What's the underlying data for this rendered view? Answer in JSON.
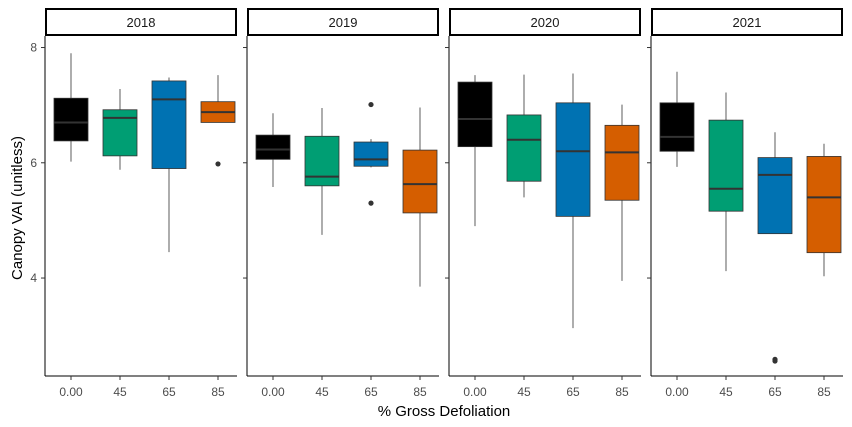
{
  "chart_data": {
    "type": "boxplot",
    "facet_by": "year",
    "xlabel": "% Gross Defoliation",
    "ylabel": "Canopy VAI (unitless)",
    "categories": [
      "0.00",
      "45",
      "65",
      "85"
    ],
    "ylim": [
      2.3,
      8.2
    ],
    "yticks": [
      4,
      6,
      8
    ],
    "grid": false,
    "legend": "none",
    "colors": {
      "0.00": "#000000",
      "45": "#009E73",
      "65": "#0072B2",
      "85": "#D55E00"
    },
    "median_color": "#333333",
    "facets": [
      {
        "label": "2018",
        "boxes": [
          {
            "category": "0.00",
            "whisker_low": 6.02,
            "q1": 6.38,
            "median": 6.7,
            "q3": 7.12,
            "whisker_high": 7.9,
            "outliers": []
          },
          {
            "category": "45",
            "whisker_low": 5.88,
            "q1": 6.12,
            "median": 6.78,
            "q3": 6.92,
            "whisker_high": 7.28,
            "outliers": []
          },
          {
            "category": "65",
            "whisker_low": 4.45,
            "q1": 5.9,
            "median": 7.1,
            "q3": 7.42,
            "whisker_high": 7.48,
            "outliers": []
          },
          {
            "category": "85",
            "whisker_low": 6.7,
            "q1": 6.7,
            "median": 6.88,
            "q3": 7.06,
            "whisker_high": 7.52,
            "outliers": [
              5.98
            ]
          }
        ]
      },
      {
        "label": "2019",
        "boxes": [
          {
            "category": "0.00",
            "whisker_low": 5.58,
            "q1": 6.06,
            "median": 6.23,
            "q3": 6.48,
            "whisker_high": 6.86,
            "outliers": []
          },
          {
            "category": "45",
            "whisker_low": 4.75,
            "q1": 5.6,
            "median": 5.76,
            "q3": 6.46,
            "whisker_high": 6.95,
            "outliers": []
          },
          {
            "category": "65",
            "whisker_low": 5.92,
            "q1": 5.94,
            "median": 6.06,
            "q3": 6.36,
            "whisker_high": 6.41,
            "outliers": [
              7.01,
              5.3
            ]
          },
          {
            "category": "85",
            "whisker_low": 3.85,
            "q1": 5.13,
            "median": 5.63,
            "q3": 6.22,
            "whisker_high": 6.96,
            "outliers": []
          }
        ]
      },
      {
        "label": "2020",
        "boxes": [
          {
            "category": "0.00",
            "whisker_low": 4.9,
            "q1": 6.28,
            "median": 6.76,
            "q3": 7.4,
            "whisker_high": 7.52,
            "outliers": []
          },
          {
            "category": "45",
            "whisker_low": 5.4,
            "q1": 5.68,
            "median": 6.4,
            "q3": 6.83,
            "whisker_high": 7.53,
            "outliers": []
          },
          {
            "category": "65",
            "whisker_low": 3.13,
            "q1": 5.07,
            "median": 6.2,
            "q3": 7.04,
            "whisker_high": 7.55,
            "outliers": []
          },
          {
            "category": "85",
            "whisker_low": 3.95,
            "q1": 5.35,
            "median": 6.18,
            "q3": 6.65,
            "whisker_high": 7.01,
            "outliers": []
          }
        ]
      },
      {
        "label": "2021",
        "boxes": [
          {
            "category": "0.00",
            "whisker_low": 5.93,
            "q1": 6.2,
            "median": 6.45,
            "q3": 7.04,
            "whisker_high": 7.58,
            "outliers": []
          },
          {
            "category": "45",
            "whisker_low": 4.12,
            "q1": 5.16,
            "median": 5.55,
            "q3": 6.74,
            "whisker_high": 7.22,
            "outliers": []
          },
          {
            "category": "65",
            "whisker_low": 4.77,
            "q1": 4.77,
            "median": 5.79,
            "q3": 6.09,
            "whisker_high": 6.53,
            "outliers": [
              2.59,
              2.56
            ]
          },
          {
            "category": "85",
            "whisker_low": 4.03,
            "q1": 4.44,
            "median": 5.4,
            "q3": 6.11,
            "whisker_high": 6.33,
            "outliers": []
          }
        ]
      }
    ]
  }
}
